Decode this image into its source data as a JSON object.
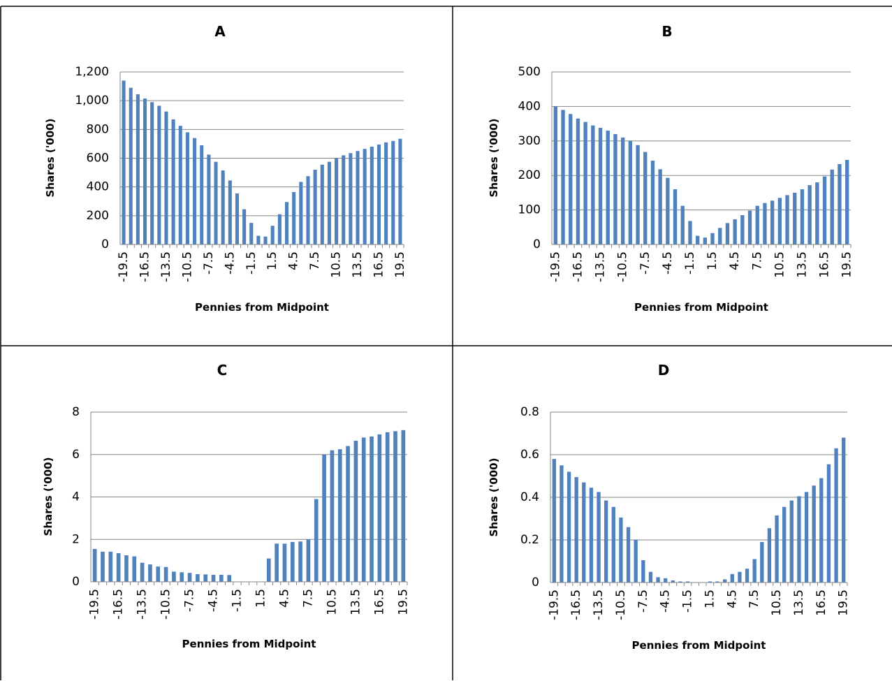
{
  "chart_data": [
    {
      "type": "bar",
      "title": "A",
      "xlabel": "Pennies from Midpoint",
      "ylabel": "Shares ('000)",
      "color": "#4f81bd",
      "grid": true,
      "categories": [
        -19.5,
        null,
        null,
        -16.5,
        null,
        null,
        -13.5,
        null,
        null,
        -10.5,
        null,
        null,
        -7.5,
        null,
        null,
        -4.5,
        null,
        null,
        -1.5,
        null,
        null,
        1.5,
        null,
        null,
        4.5,
        null,
        null,
        7.5,
        null,
        null,
        10.5,
        null,
        null,
        13.5,
        null,
        null,
        16.5,
        null,
        null,
        19.5
      ],
      "values": [
        1140,
        1090,
        1045,
        1015,
        990,
        965,
        925,
        870,
        825,
        780,
        740,
        690,
        625,
        575,
        515,
        445,
        355,
        245,
        150,
        60,
        55,
        130,
        210,
        295,
        365,
        435,
        475,
        520,
        555,
        575,
        600,
        620,
        635,
        650,
        665,
        680,
        695,
        710,
        720,
        735
      ],
      "ylim": [
        0,
        1200
      ],
      "yticks": [
        0,
        200,
        400,
        600,
        800,
        {
          "value": 1000,
          "label": "1,000"
        },
        {
          "value": 1200,
          "label": "1,200"
        }
      ]
    },
    {
      "type": "bar",
      "title": "B",
      "xlabel": "Pennies from Midpoint",
      "ylabel": "Shares ('000)",
      "color": "#4f81bd",
      "grid": true,
      "categories": [
        -19.5,
        null,
        null,
        -16.5,
        null,
        null,
        -13.5,
        null,
        null,
        -10.5,
        null,
        null,
        -7.5,
        null,
        null,
        -4.5,
        null,
        null,
        -1.5,
        null,
        null,
        1.5,
        null,
        null,
        4.5,
        null,
        null,
        7.5,
        null,
        null,
        10.5,
        null,
        null,
        13.5,
        null,
        null,
        16.5,
        null,
        null,
        19.5
      ],
      "values": [
        400,
        390,
        378,
        365,
        355,
        345,
        338,
        330,
        320,
        310,
        300,
        288,
        268,
        243,
        218,
        193,
        160,
        112,
        68,
        25,
        20,
        33,
        48,
        62,
        73,
        85,
        98,
        112,
        120,
        127,
        135,
        143,
        150,
        160,
        172,
        180,
        197,
        217,
        233,
        245
      ],
      "ylim": [
        0,
        500
      ],
      "yticks": [
        0,
        100,
        200,
        300,
        400,
        500
      ]
    },
    {
      "type": "bar",
      "title": "C",
      "xlabel": "Pennies from Midpoint",
      "ylabel": "Shares ('000)",
      "color": "#4f81bd",
      "grid": true,
      "categories": [
        -19.5,
        null,
        null,
        -16.5,
        null,
        null,
        -13.5,
        null,
        null,
        -10.5,
        null,
        null,
        -7.5,
        null,
        null,
        -4.5,
        null,
        null,
        -1.5,
        null,
        null,
        1.5,
        null,
        null,
        4.5,
        null,
        null,
        7.5,
        null,
        null,
        10.5,
        null,
        null,
        13.5,
        null,
        null,
        16.5,
        null,
        null,
        19.5
      ],
      "values": [
        1.55,
        1.42,
        1.42,
        1.35,
        1.25,
        1.2,
        0.9,
        0.82,
        0.72,
        0.7,
        0.48,
        0.45,
        0.42,
        0.36,
        0.35,
        0.33,
        0.33,
        0.32,
        0,
        0,
        0,
        0,
        1.1,
        1.8,
        1.8,
        1.88,
        1.9,
        2.0,
        3.9,
        6.0,
        6.2,
        6.25,
        6.4,
        6.65,
        6.8,
        6.85,
        6.95,
        7.05,
        7.1,
        7.15
      ],
      "ylim": [
        0,
        8
      ],
      "yticks": [
        0,
        2,
        4,
        6,
        8
      ]
    },
    {
      "type": "bar",
      "title": "D",
      "xlabel": "Pennies from Midpoint",
      "ylabel": "Shares ('000)",
      "color": "#4f81bd",
      "grid": true,
      "categories": [
        -19.5,
        null,
        null,
        -16.5,
        null,
        null,
        -13.5,
        null,
        null,
        -10.5,
        null,
        null,
        -7.5,
        null,
        null,
        -4.5,
        null,
        null,
        -1.5,
        null,
        null,
        1.5,
        null,
        null,
        4.5,
        null,
        null,
        7.5,
        null,
        null,
        10.5,
        null,
        null,
        13.5,
        null,
        null,
        16.5,
        null,
        null,
        19.5
      ],
      "values": [
        0.58,
        0.55,
        0.52,
        0.495,
        0.47,
        0.445,
        0.425,
        0.385,
        0.355,
        0.305,
        0.26,
        0.2,
        0.105,
        0.05,
        0.025,
        0.02,
        0.01,
        0.005,
        0.005,
        0,
        0,
        0.005,
        0.005,
        0.015,
        0.04,
        0.05,
        0.065,
        0.11,
        0.19,
        0.255,
        0.315,
        0.355,
        0.385,
        0.405,
        0.425,
        0.455,
        0.49,
        0.555,
        0.63,
        0.68
      ],
      "ylim": [
        0,
        0.8
      ],
      "yticks": [
        0,
        0.2,
        0.4,
        0.6,
        0.8
      ]
    }
  ]
}
